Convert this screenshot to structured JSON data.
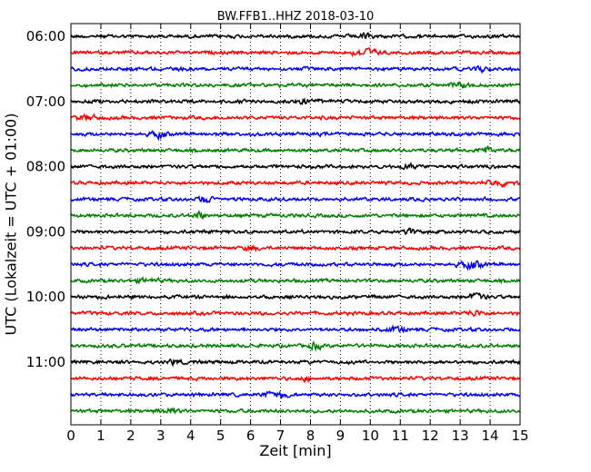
{
  "chart_data": {
    "type": "line",
    "title": "BW.FFB1..HHZ 2018-03-10",
    "xlabel": "Zeit  [min]",
    "ylabel": "UTC (Lokalzeit = UTC + 01:00)",
    "xlim": [
      0,
      15
    ],
    "x_ticks": [
      "0",
      "1",
      "2",
      "3",
      "4",
      "5",
      "6",
      "7",
      "8",
      "9",
      "10",
      "11",
      "12",
      "13",
      "14",
      "15"
    ],
    "y_ticks": [
      "06:00",
      "07:00",
      "08:00",
      "09:00",
      "10:00",
      "11:00"
    ],
    "grid": "vertical dotted",
    "trace_colors": [
      "#000000",
      "#ff0000",
      "#0000ff",
      "#008000"
    ],
    "traces": [
      {
        "start": "06:00"
      },
      {
        "start": "06:15"
      },
      {
        "start": "06:30"
      },
      {
        "start": "06:45"
      },
      {
        "start": "07:00"
      },
      {
        "start": "07:15"
      },
      {
        "start": "07:30"
      },
      {
        "start": "07:45"
      },
      {
        "start": "08:00"
      },
      {
        "start": "08:15"
      },
      {
        "start": "08:30"
      },
      {
        "start": "08:45"
      },
      {
        "start": "09:00"
      },
      {
        "start": "09:15"
      },
      {
        "start": "09:30"
      },
      {
        "start": "09:45"
      },
      {
        "start": "10:00"
      },
      {
        "start": "10:15"
      },
      {
        "start": "10:30"
      },
      {
        "start": "10:45"
      },
      {
        "start": "11:00"
      },
      {
        "start": "11:15"
      },
      {
        "start": "11:30"
      },
      {
        "start": "11:45"
      }
    ]
  }
}
